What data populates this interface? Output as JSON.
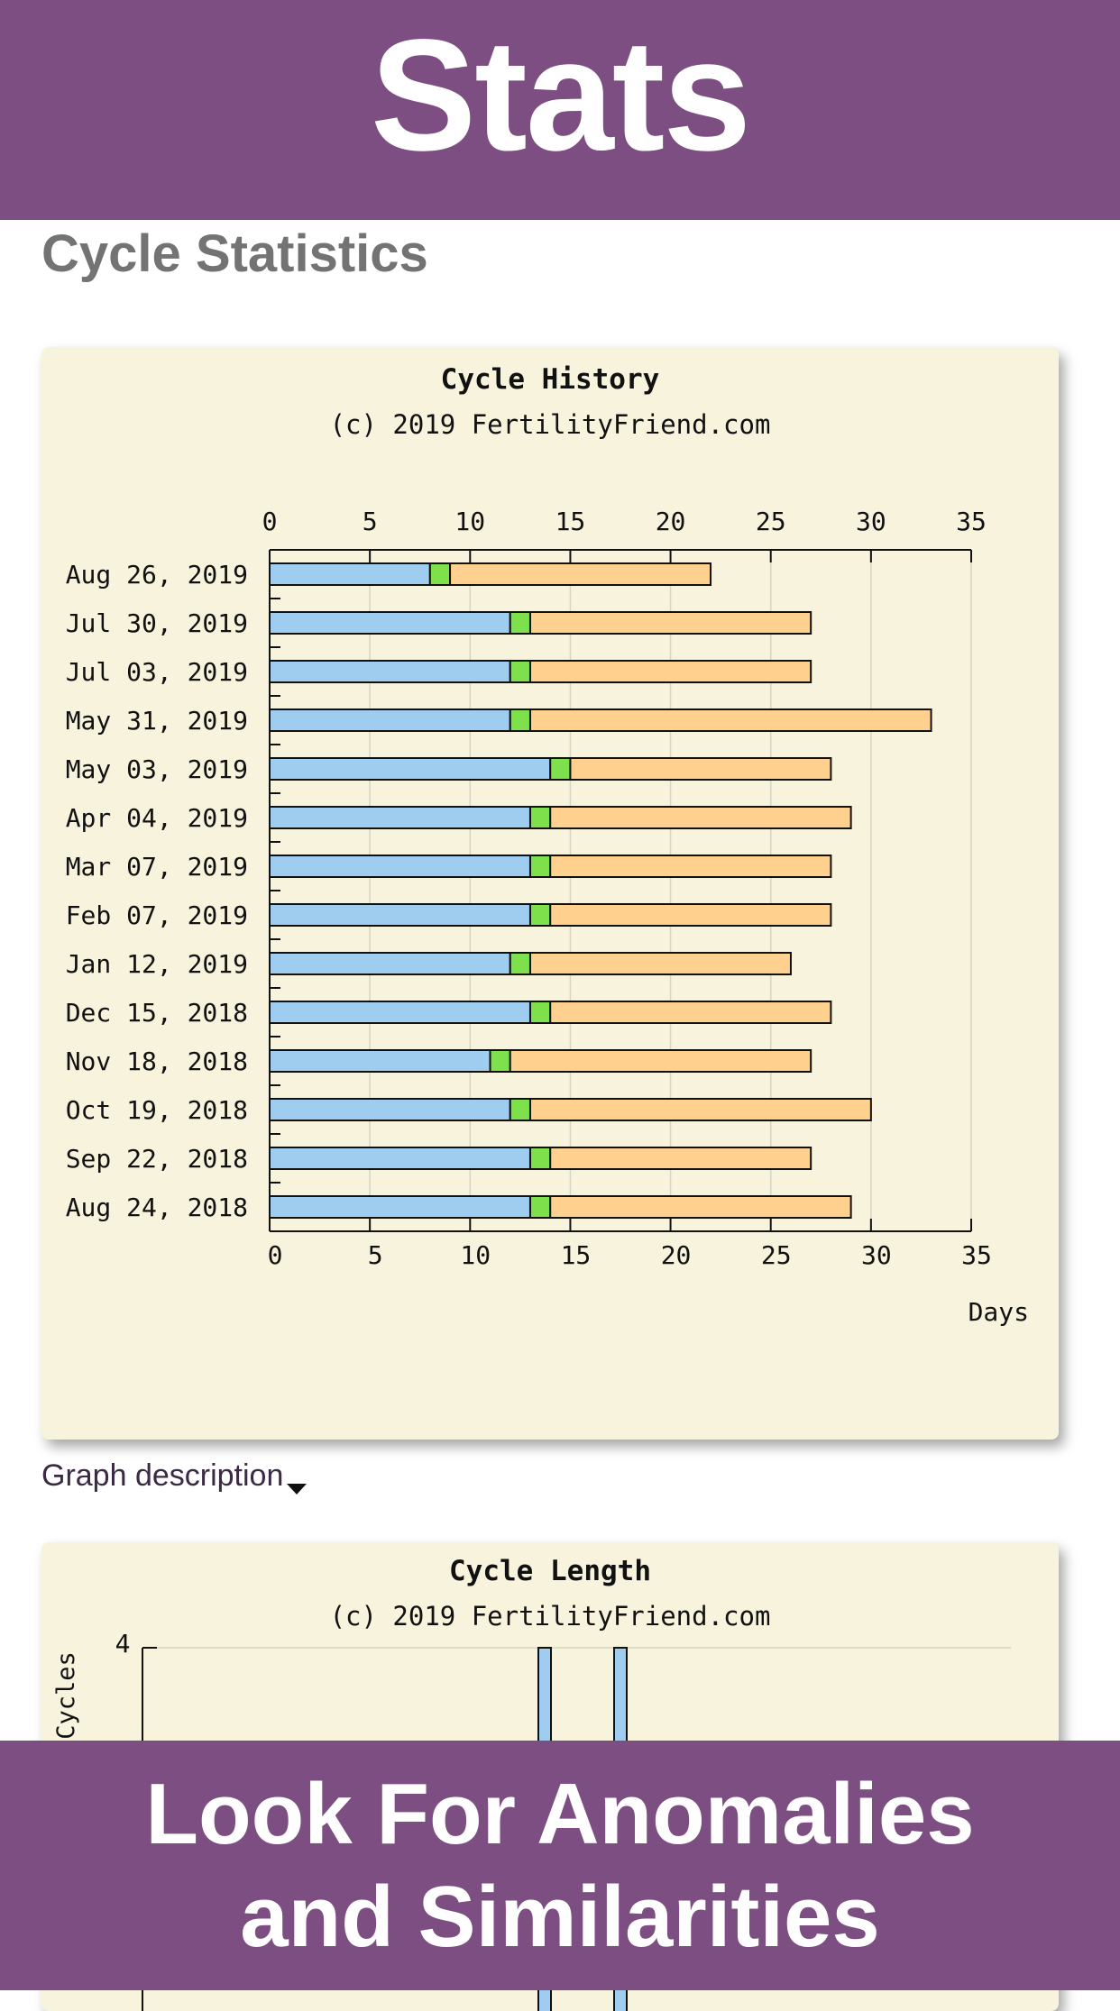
{
  "banner_top": {
    "title": "Stats"
  },
  "section_title": "Cycle Statistics",
  "chart_data": [
    {
      "type": "bar",
      "orientation": "horizontal",
      "stacked": true,
      "title": "Cycle History",
      "subtitle": "(c) 2019 FertilityFriend.com",
      "xlabel": "Days",
      "xlim": [
        0,
        35
      ],
      "xticks": [
        0,
        5,
        10,
        15,
        20,
        25,
        30,
        35
      ],
      "grid": true,
      "categories": [
        "Aug 26, 2019",
        "Jul 30, 2019",
        "Jul 03, 2019",
        "May 31, 2019",
        "May 03, 2019",
        "Apr 04, 2019",
        "Mar 07, 2019",
        "Feb 07, 2019",
        "Jan 12, 2019",
        "Dec 15, 2018",
        "Nov 18, 2018",
        "Oct 19, 2018",
        "Sep 22, 2018",
        "Aug 24, 2018"
      ],
      "series": [
        {
          "color": "#9fcdf0",
          "values": [
            8,
            12,
            12,
            12,
            14,
            13,
            13,
            13,
            12,
            13,
            11,
            12,
            13,
            13
          ]
        },
        {
          "color": "#7ee04a",
          "values": [
            1,
            1,
            1,
            1,
            1,
            1,
            1,
            1,
            1,
            1,
            1,
            1,
            1,
            1
          ]
        },
        {
          "color": "#ffd08e",
          "values": [
            13,
            14,
            14,
            20,
            13,
            15,
            14,
            14,
            13,
            14,
            15,
            17,
            13,
            15
          ]
        }
      ]
    },
    {
      "type": "bar",
      "title": "Cycle Length",
      "subtitle": "(c) 2019 FertilityFriend.com",
      "ylabel": "Cycles",
      "ytick_top": "4"
    }
  ],
  "graph_description": "Graph description",
  "banner_bottom": {
    "line1": "Look For Anomalies",
    "line2": "and Similarities"
  }
}
